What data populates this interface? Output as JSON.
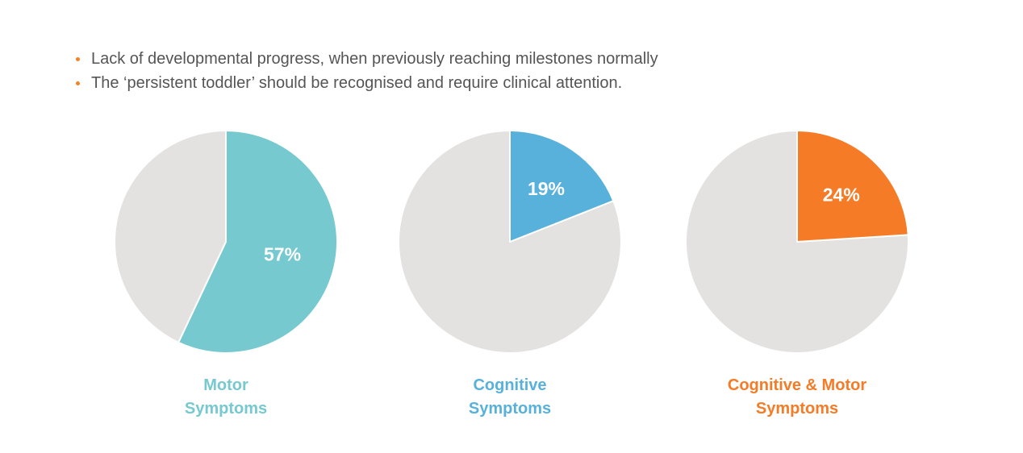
{
  "bullets": [
    "Lack of developmental progress, when previously reaching milestones normally",
    "The ‘persistent toddler’ should be recognised and require clinical attention."
  ],
  "colors": {
    "bullet": "#f58220",
    "remainder": "#e3e2e1",
    "text": "#555555"
  },
  "chart_data": [
    {
      "type": "pie",
      "label_lines": [
        "Motor",
        "Symptoms"
      ],
      "value": 57,
      "value_label": "57%",
      "color": "#75c9cf",
      "remainder_color": "#e3e2e1"
    },
    {
      "type": "pie",
      "label_lines": [
        "Cognitive",
        "Symptoms"
      ],
      "value": 19,
      "value_label": "19%",
      "color": "#58b1da",
      "remainder_color": "#e3e2e1"
    },
    {
      "type": "pie",
      "label_lines": [
        "Cognitive & Motor",
        "Symptoms"
      ],
      "value": 24,
      "value_label": "24%",
      "color": "#f57b26",
      "remainder_color": "#e3e2e1"
    }
  ]
}
